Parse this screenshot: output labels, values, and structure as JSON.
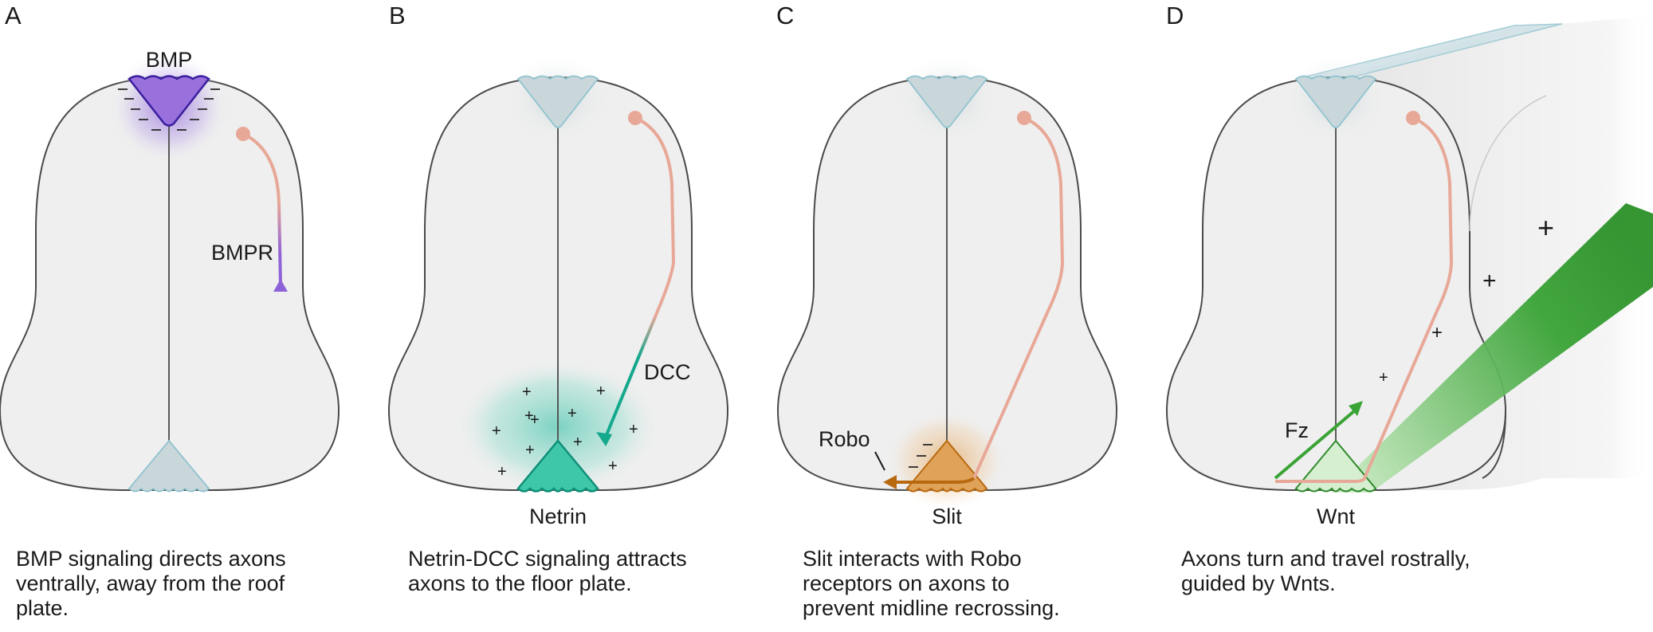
{
  "panels": [
    {
      "letter": "A",
      "labels": {
        "molecule": "BMP",
        "receptor": "BMPR"
      },
      "caption": [
        "BMP signaling directs axons",
        "ventrally, away from the roof",
        "plate."
      ]
    },
    {
      "letter": "B",
      "labels": {
        "molecule": "Netrin",
        "receptor": "DCC"
      },
      "caption": [
        "Netrin-DCC signaling attracts",
        "axons to the floor plate."
      ]
    },
    {
      "letter": "C",
      "labels": {
        "molecule": "Slit",
        "receptor": "Robo"
      },
      "caption": [
        "Slit interacts with Robo",
        "receptors on axons to",
        "prevent midline recrossing."
      ]
    },
    {
      "letter": "D",
      "labels": {
        "molecule": "Wnt",
        "receptor": "Fz"
      },
      "caption": [
        "Axons turn and travel rostrally,",
        "guided by Wnts."
      ]
    }
  ],
  "colors": {
    "tube_fill": "#efefef",
    "tube_stroke": "#4a4a4a",
    "plate_idle": "#c9d7db",
    "plate_idle_stroke": "#8fc3cf",
    "axon": "#e8a898",
    "bmp": "#8e62d8",
    "bmp_stroke": "#4a2aa8",
    "netrin": "#2fbfa3",
    "netrin_stroke": "#0f8f78",
    "slit": "#e0a258",
    "slit_stroke": "#b8690f",
    "wnt": "#2f9a2c",
    "wnt_light": "#d5efd0"
  }
}
